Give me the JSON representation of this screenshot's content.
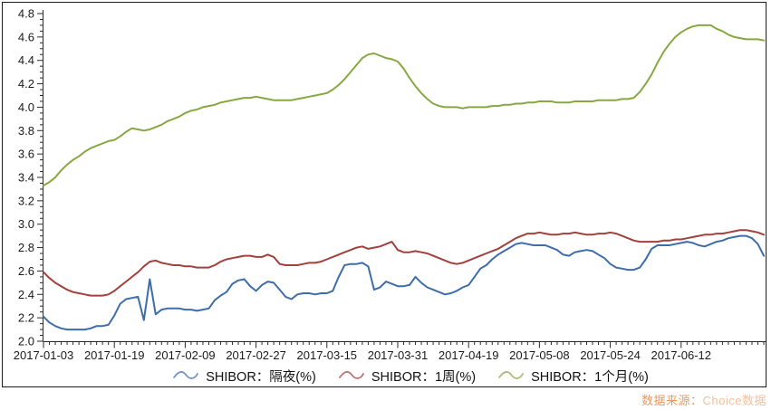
{
  "figure": {
    "background": "#ffffff",
    "border_color": "#1c1c1c",
    "axis_color": "#2a2a2a"
  },
  "source_note": {
    "prefix": "数据来源：",
    "brand": "Choice数据",
    "prefix_color": "#ea9a62",
    "brand_color": "#f6c09a"
  },
  "chart_data": {
    "type": "line",
    "title": "",
    "xlabel": "",
    "ylabel": "",
    "grid": false,
    "legend_position": "bottom",
    "n_points": 123,
    "y_axis": {
      "min": 2.0,
      "max": 4.8,
      "major_step": 0.2,
      "minor_step": 0.05
    },
    "y_tick_labels": [
      "2.0",
      "2.2",
      "2.4",
      "2.6",
      "2.8",
      "3.0",
      "3.2",
      "3.4",
      "3.6",
      "3.8",
      "4.0",
      "4.2",
      "4.4",
      "4.6",
      "4.8"
    ],
    "x_tick_labels": [
      "2017-01-03",
      "2017-01-19",
      "2017-02-09",
      "2017-02-27",
      "2017-03-15",
      "2017-03-31",
      "2017-04-19",
      "2017-05-08",
      "2017-05-24",
      "2017-06-12"
    ],
    "x_label_indices": [
      0,
      12,
      24,
      36,
      48,
      60,
      72,
      84,
      96,
      108
    ],
    "series": [
      {
        "key": "overnight",
        "name": "SHIBOR：隔夜(%)",
        "color": "#3e6da9",
        "values": [
          2.21,
          2.16,
          2.13,
          2.11,
          2.1,
          2.1,
          2.1,
          2.1,
          2.11,
          2.13,
          2.13,
          2.14,
          2.22,
          2.32,
          2.36,
          2.37,
          2.38,
          2.18,
          2.53,
          2.23,
          2.27,
          2.28,
          2.28,
          2.28,
          2.27,
          2.27,
          2.26,
          2.27,
          2.28,
          2.35,
          2.39,
          2.42,
          2.49,
          2.52,
          2.53,
          2.47,
          2.43,
          2.48,
          2.51,
          2.5,
          2.44,
          2.38,
          2.36,
          2.4,
          2.41,
          2.41,
          2.4,
          2.41,
          2.41,
          2.43,
          2.55,
          2.65,
          2.66,
          2.66,
          2.67,
          2.64,
          2.44,
          2.46,
          2.51,
          2.49,
          2.47,
          2.47,
          2.48,
          2.55,
          2.5,
          2.46,
          2.44,
          2.42,
          2.4,
          2.41,
          2.43,
          2.46,
          2.48,
          2.55,
          2.62,
          2.65,
          2.7,
          2.74,
          2.77,
          2.8,
          2.83,
          2.84,
          2.83,
          2.82,
          2.82,
          2.82,
          2.8,
          2.78,
          2.74,
          2.73,
          2.76,
          2.77,
          2.78,
          2.77,
          2.74,
          2.71,
          2.66,
          2.63,
          2.62,
          2.61,
          2.61,
          2.63,
          2.7,
          2.79,
          2.82,
          2.82,
          2.82,
          2.83,
          2.84,
          2.85,
          2.84,
          2.82,
          2.81,
          2.83,
          2.85,
          2.86,
          2.88,
          2.89,
          2.9,
          2.9,
          2.88,
          2.83,
          2.73
        ]
      },
      {
        "key": "1w",
        "name": "SHIBOR：1周(%)",
        "color": "#a2403c",
        "values": [
          2.59,
          2.54,
          2.5,
          2.47,
          2.44,
          2.42,
          2.41,
          2.4,
          2.39,
          2.39,
          2.39,
          2.4,
          2.43,
          2.47,
          2.51,
          2.55,
          2.59,
          2.64,
          2.68,
          2.69,
          2.67,
          2.66,
          2.65,
          2.65,
          2.64,
          2.64,
          2.63,
          2.63,
          2.63,
          2.65,
          2.68,
          2.7,
          2.71,
          2.72,
          2.73,
          2.73,
          2.72,
          2.72,
          2.74,
          2.72,
          2.66,
          2.65,
          2.65,
          2.65,
          2.66,
          2.67,
          2.67,
          2.68,
          2.7,
          2.72,
          2.74,
          2.76,
          2.78,
          2.8,
          2.81,
          2.79,
          2.8,
          2.81,
          2.83,
          2.85,
          2.78,
          2.76,
          2.76,
          2.77,
          2.76,
          2.75,
          2.73,
          2.71,
          2.69,
          2.67,
          2.66,
          2.67,
          2.69,
          2.71,
          2.73,
          2.75,
          2.77,
          2.79,
          2.82,
          2.85,
          2.88,
          2.9,
          2.92,
          2.92,
          2.93,
          2.92,
          2.91,
          2.91,
          2.92,
          2.92,
          2.93,
          2.92,
          2.91,
          2.91,
          2.92,
          2.92,
          2.93,
          2.92,
          2.9,
          2.88,
          2.86,
          2.85,
          2.85,
          2.85,
          2.85,
          2.86,
          2.86,
          2.87,
          2.87,
          2.88,
          2.89,
          2.9,
          2.91,
          2.91,
          2.92,
          2.92,
          2.93,
          2.94,
          2.95,
          2.95,
          2.94,
          2.93,
          2.91
        ]
      },
      {
        "key": "1m",
        "name": "SHIBOR：1个月(%)",
        "color": "#87a840",
        "values": [
          3.33,
          3.36,
          3.4,
          3.46,
          3.51,
          3.55,
          3.58,
          3.62,
          3.65,
          3.67,
          3.69,
          3.71,
          3.72,
          3.75,
          3.79,
          3.82,
          3.81,
          3.8,
          3.81,
          3.83,
          3.85,
          3.88,
          3.9,
          3.92,
          3.95,
          3.97,
          3.98,
          4.0,
          4.01,
          4.02,
          4.04,
          4.05,
          4.06,
          4.07,
          4.08,
          4.08,
          4.09,
          4.08,
          4.07,
          4.06,
          4.06,
          4.06,
          4.06,
          4.07,
          4.08,
          4.09,
          4.1,
          4.11,
          4.12,
          4.15,
          4.19,
          4.24,
          4.3,
          4.36,
          4.42,
          4.45,
          4.46,
          4.44,
          4.42,
          4.41,
          4.39,
          4.33,
          4.25,
          4.18,
          4.12,
          4.07,
          4.03,
          4.01,
          4.0,
          4.0,
          4.0,
          3.99,
          4.0,
          4.0,
          4.0,
          4.0,
          4.01,
          4.01,
          4.02,
          4.02,
          4.03,
          4.03,
          4.04,
          4.04,
          4.05,
          4.05,
          4.05,
          4.04,
          4.04,
          4.04,
          4.05,
          4.05,
          4.05,
          4.05,
          4.06,
          4.06,
          4.06,
          4.06,
          4.07,
          4.07,
          4.08,
          4.13,
          4.2,
          4.28,
          4.38,
          4.47,
          4.54,
          4.6,
          4.64,
          4.67,
          4.69,
          4.7,
          4.7,
          4.7,
          4.67,
          4.65,
          4.62,
          4.6,
          4.59,
          4.58,
          4.58,
          4.58,
          4.57
        ]
      }
    ]
  }
}
